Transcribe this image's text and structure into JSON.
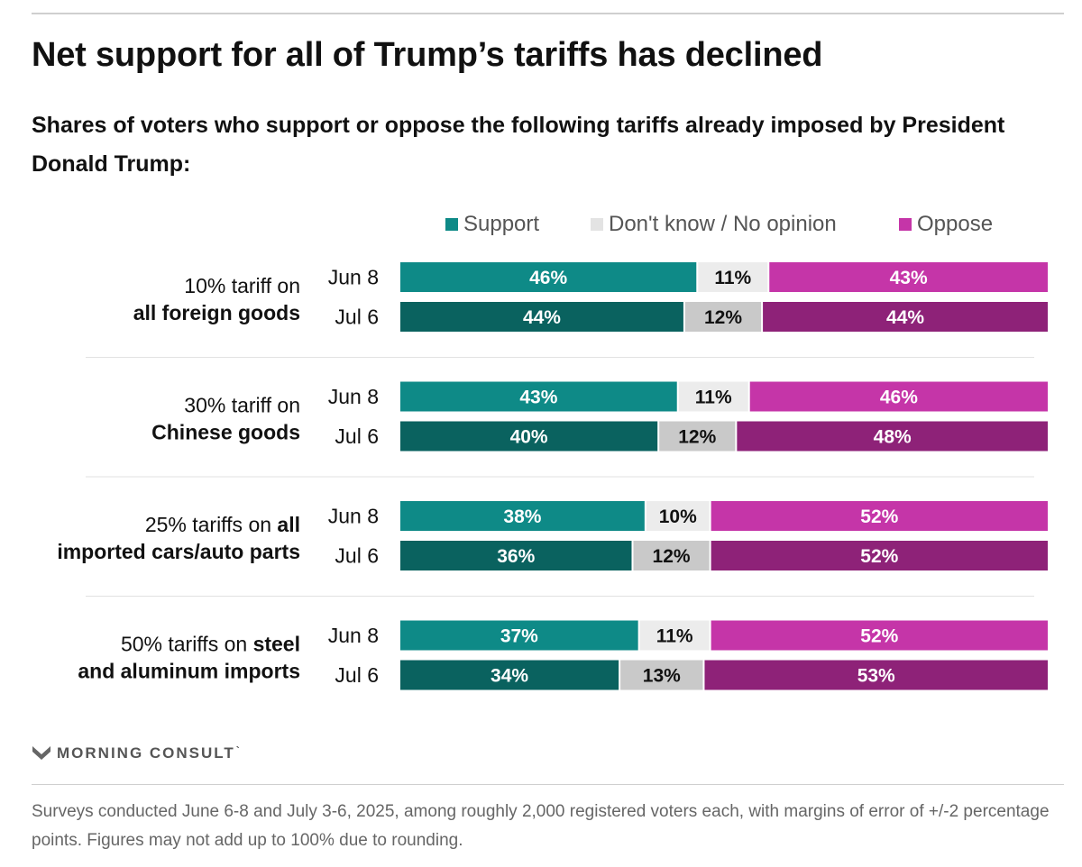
{
  "header": {
    "title": "Net support for all of Trump’s tariffs has declined",
    "subtitle": "Shares of voters who support or oppose the following tariffs already imposed by President Donald Trump:"
  },
  "legend": {
    "support": "Support",
    "dont_know": "Don't know / No opinion",
    "oppose": "Oppose"
  },
  "colors": {
    "support_jun": "#0e8a87",
    "support_jul": "#0a625f",
    "dontknow_jun": "#ececec",
    "dontknow_jul": "#c9c9c9",
    "oppose_jun": "#c535a8",
    "oppose_jul": "#8e2278"
  },
  "chart_data": {
    "type": "bar",
    "orientation": "horizontal-stacked-100",
    "title": "Net support for all of Trump’s tariffs has declined",
    "series_names": [
      "Support",
      "Don't know / No opinion",
      "Oppose"
    ],
    "groups": [
      {
        "label_parts": [
          {
            "line": 0,
            "text": "10% tariff on",
            "bold": false
          },
          {
            "line": 1,
            "text": "all foreign goods",
            "bold": true
          }
        ],
        "rows": [
          {
            "date": "Jun 8",
            "values": [
              46,
              11,
              43
            ]
          },
          {
            "date": "Jul 6",
            "values": [
              44,
              12,
              44
            ]
          }
        ]
      },
      {
        "label_parts": [
          {
            "line": 0,
            "text": "30% tariff on",
            "bold": false
          },
          {
            "line": 1,
            "text": "Chinese goods",
            "bold": true
          }
        ],
        "rows": [
          {
            "date": "Jun 8",
            "values": [
              43,
              11,
              46
            ]
          },
          {
            "date": "Jul 6",
            "values": [
              40,
              12,
              48
            ]
          }
        ]
      },
      {
        "label_parts": [
          {
            "line": 0,
            "text": "25% tariffs on ",
            "bold": false
          },
          {
            "line": 0,
            "text": "all",
            "bold": true
          },
          {
            "line": 1,
            "text": "imported cars/auto parts",
            "bold": true
          }
        ],
        "rows": [
          {
            "date": "Jun 8",
            "values": [
              38,
              10,
              52
            ]
          },
          {
            "date": "Jul 6",
            "values": [
              36,
              12,
              52
            ]
          }
        ]
      },
      {
        "label_parts": [
          {
            "line": 0,
            "text": "50% tariffs on ",
            "bold": false
          },
          {
            "line": 0,
            "text": "steel",
            "bold": true
          },
          {
            "line": 1,
            "text": "and aluminum imports",
            "bold": true
          }
        ],
        "rows": [
          {
            "date": "Jun 8",
            "values": [
              37,
              11,
              52
            ]
          },
          {
            "date": "Jul 6",
            "values": [
              34,
              13,
              53
            ]
          }
        ]
      }
    ]
  },
  "branding": {
    "name": "MORNING CONSULT",
    "mark": "`"
  },
  "footnote": "Surveys conducted June 6-8 and July 3-6, 2025, among roughly 2,000 registered voters each, with margins of error of +/-2 percentage points. Figures may not add up to 100% due to rounding."
}
